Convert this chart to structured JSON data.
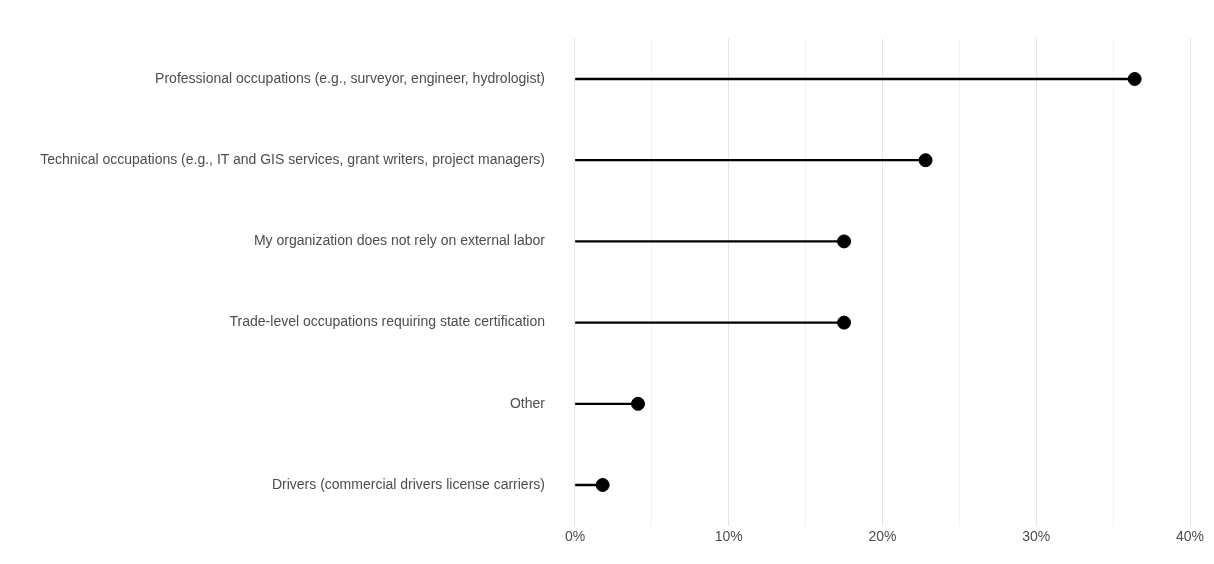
{
  "chart_data": {
    "type": "lollipop",
    "orientation": "horizontal",
    "categories": [
      "Professional occupations (e.g., surveyor, engineer, hydrologist)",
      "Technical occupations (e.g., IT and GIS services, grant writers, project managers)",
      "My organization does not rely on external labor",
      "Trade-level occupations requiring state certification",
      "Other",
      "Drivers (commercial drivers license carriers)"
    ],
    "values": [
      36.4,
      22.8,
      17.5,
      17.5,
      4.1,
      1.8
    ],
    "color": "#000000",
    "xlim": [
      0,
      40
    ],
    "xticks": [
      {
        "value": 0,
        "label": "0%"
      },
      {
        "value": 5,
        "label": null
      },
      {
        "value": 10,
        "label": "10%"
      },
      {
        "value": 15,
        "label": null
      },
      {
        "value": 20,
        "label": "20%"
      },
      {
        "value": 25,
        "label": null
      },
      {
        "value": 30,
        "label": "30%"
      },
      {
        "value": 35,
        "label": null
      },
      {
        "value": 40,
        "label": "40%"
      }
    ],
    "grid": "x",
    "marker": "circle",
    "legend": false
  }
}
